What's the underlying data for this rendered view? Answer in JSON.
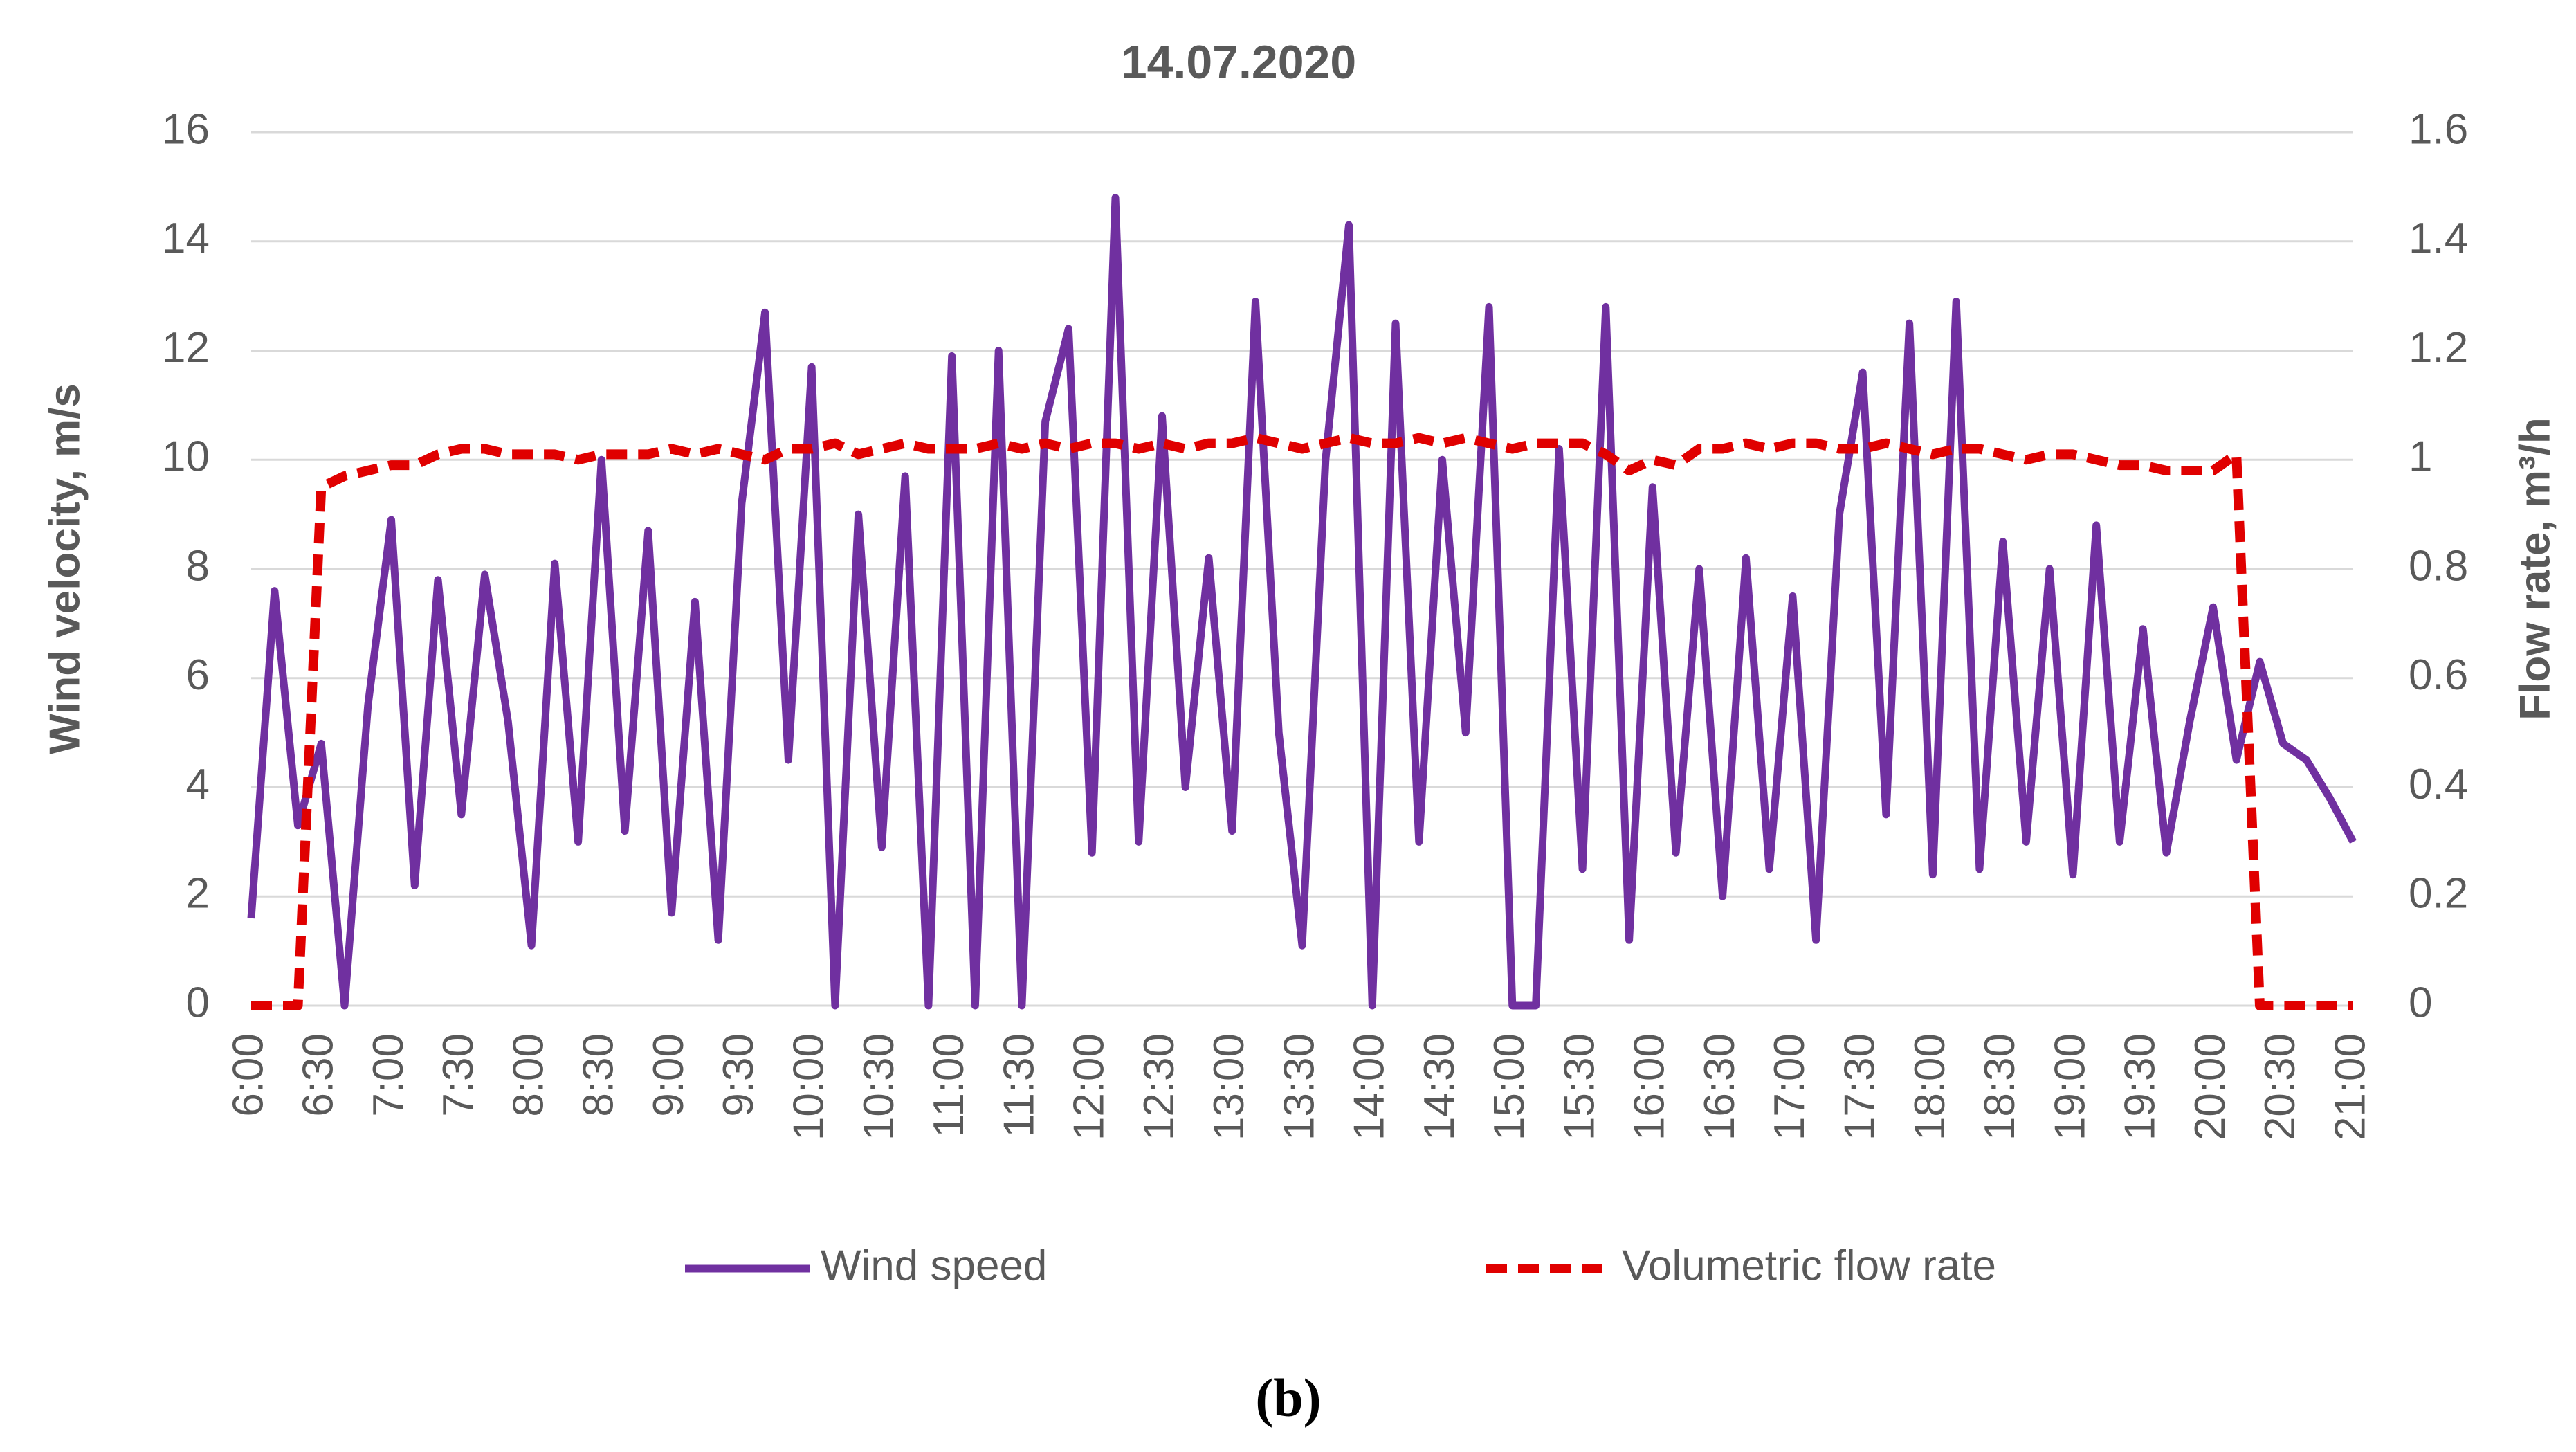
{
  "chart_data": {
    "type": "line",
    "title": "14.07.2020",
    "caption": "(b)",
    "y_label": "Wind velocity, m/s",
    "y2_label": "Flow rate, m³/h",
    "categories": [
      "6:00",
      null,
      null,
      "6:30",
      null,
      null,
      "7:00",
      null,
      null,
      "7:30",
      null,
      null,
      "8:00",
      null,
      null,
      "8:30",
      null,
      null,
      "9:00",
      null,
      null,
      "9:30",
      null,
      null,
      "10:00",
      null,
      null,
      "10:30",
      null,
      null,
      "11:00",
      null,
      null,
      "11:30",
      null,
      null,
      "12:00",
      null,
      null,
      "12:30",
      null,
      null,
      "13:00",
      null,
      null,
      "13:30",
      null,
      null,
      "14:00",
      null,
      null,
      "14:30",
      null,
      null,
      "15:00",
      null,
      null,
      "15:30",
      null,
      null,
      "16:00",
      null,
      null,
      "16:30",
      null,
      null,
      "17:00",
      null,
      null,
      "17:30",
      null,
      null,
      "18:00",
      null,
      null,
      "18:30",
      null,
      null,
      "19:00",
      null,
      null,
      "19:30",
      null,
      null,
      "20:00",
      null,
      null,
      "20:30",
      null,
      null,
      "21:00"
    ],
    "series": [
      {
        "name": "Wind speed",
        "color": "#7030a0",
        "dashed": false,
        "values": [
          1.6,
          7.6,
          3.3,
          4.8,
          0,
          5.5,
          8.9,
          2.2,
          7.8,
          3.5,
          7.9,
          5.2,
          1.1,
          8.1,
          3.0,
          10.0,
          3.2,
          8.7,
          1.7,
          7.4,
          1.2,
          9.2,
          12.7,
          4.5,
          11.7,
          0,
          9.0,
          2.9,
          9.7,
          0,
          11.9,
          0,
          12.0,
          0,
          10.7,
          12.4,
          2.8,
          14.8,
          3.0,
          10.8,
          4.0,
          8.2,
          3.2,
          12.9,
          5.0,
          1.1,
          10.0,
          14.3,
          0,
          12.5,
          3.0,
          10.0,
          5.0,
          12.8,
          0,
          0,
          10.2,
          2.5,
          12.8,
          1.2,
          9.5,
          2.8,
          8.0,
          2.0,
          8.2,
          2.5,
          7.5,
          1.2,
          9.0,
          11.6,
          3.5,
          12.5,
          2.4,
          12.9,
          2.5,
          8.5,
          3.0,
          8.0,
          2.4,
          8.8,
          3.0,
          6.9,
          2.8,
          5.2,
          7.3,
          4.5,
          6.3,
          4.8,
          4.5,
          3.8,
          3.0
        ]
      },
      {
        "name": "Volumetric flow rate",
        "color": "#e00000",
        "dashed": true,
        "axis": "y2",
        "values": [
          0,
          0,
          0,
          0.95,
          0.97,
          0.98,
          0.99,
          0.99,
          1.01,
          1.02,
          1.02,
          1.01,
          1.01,
          1.01,
          1.0,
          1.01,
          1.01,
          1.01,
          1.02,
          1.01,
          1.02,
          1.01,
          1.0,
          1.02,
          1.02,
          1.03,
          1.01,
          1.02,
          1.03,
          1.02,
          1.02,
          1.02,
          1.03,
          1.02,
          1.03,
          1.02,
          1.03,
          1.03,
          1.02,
          1.03,
          1.02,
          1.03,
          1.03,
          1.04,
          1.03,
          1.02,
          1.03,
          1.04,
          1.03,
          1.03,
          1.04,
          1.03,
          1.04,
          1.03,
          1.02,
          1.03,
          1.03,
          1.03,
          1.01,
          0.98,
          1.0,
          0.99,
          1.02,
          1.02,
          1.03,
          1.02,
          1.03,
          1.03,
          1.02,
          1.02,
          1.03,
          1.02,
          1.01,
          1.02,
          1.02,
          1.01,
          1.0,
          1.01,
          1.01,
          1.0,
          0.99,
          0.99,
          0.98,
          0.98,
          0.98,
          1.01,
          0,
          0,
          0,
          0,
          0
        ]
      }
    ],
    "ylim": [
      0,
      16
    ],
    "yticks": [
      0,
      2,
      4,
      6,
      8,
      10,
      12,
      14,
      16
    ],
    "y2lim": [
      0,
      1.6
    ],
    "y2ticks": [
      0,
      0.2,
      0.4,
      0.6,
      0.8,
      1,
      1.2,
      1.4,
      1.6
    ],
    "grid": true,
    "legend": "bottom"
  }
}
